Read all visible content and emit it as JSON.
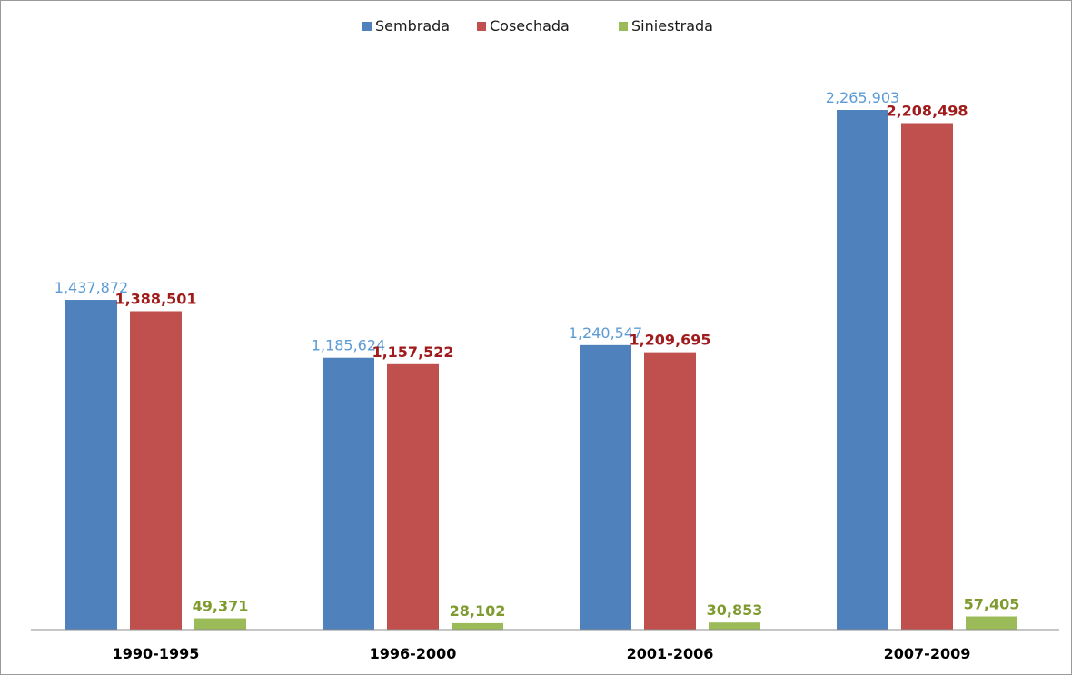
{
  "chart_data": {
    "type": "bar",
    "categories": [
      "1990-1995",
      "1996-2000",
      "2001-2006",
      "2007-2009"
    ],
    "series": [
      {
        "name": "Sembrada",
        "color": "#4F81BD",
        "label_color": "#5B9BD5",
        "label_weight": "normal",
        "values": [
          1437872,
          1185624,
          1240547,
          2265903
        ]
      },
      {
        "name": "Cosechada",
        "color": "#C0504D",
        "label_color": "#A01B1B",
        "label_weight": "bold",
        "values": [
          1388501,
          1157522,
          1209695,
          2208498
        ]
      },
      {
        "name": "Siniestrada",
        "color": "#9BBB59",
        "label_color": "#7F9A2E",
        "label_weight": "bold",
        "values": [
          49371,
          28102,
          30853,
          57405
        ]
      }
    ],
    "data_labels": [
      [
        "1,437,872",
        "1,185,624",
        "1,240,547",
        "2,265,903"
      ],
      [
        "1,388,501",
        "1,157,522",
        "1,209,695",
        "2,208,498"
      ],
      [
        "49,371",
        "28,102",
        "30,853",
        "57,405"
      ]
    ],
    "legend_position": "top-center",
    "grid": false,
    "ylim": [
      0,
      2265903
    ],
    "title": "",
    "xlabel": "",
    "ylabel": ""
  }
}
